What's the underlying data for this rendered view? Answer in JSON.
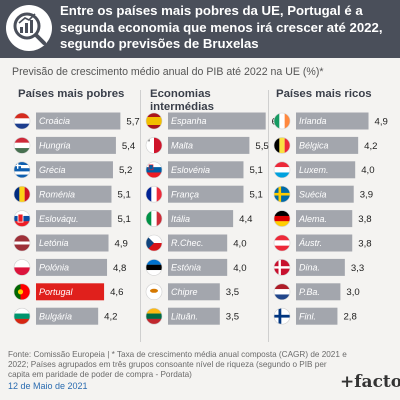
{
  "header": {
    "title": "Entre os países mais pobres da UE, Portugal é a segunda economia que menos irá crescer até 2022, segundo previsões de Bruxelas",
    "logo_icon": "magnifier-chart-icon"
  },
  "subtitle": "Previsão de crescimento médio anual do PIB até 2022 na UE (%)*",
  "chart_data": {
    "type": "bar",
    "orientation": "horizontal",
    "xlim": [
      0,
      7
    ],
    "groups": [
      {
        "name": "Países mais pobres",
        "categories": [
          "Croácia",
          "Hungria",
          "Grécia",
          "Roménia",
          "Eslováqu.",
          "Letónia",
          "Polónia",
          "Portugal",
          "Bulgária"
        ],
        "values": [
          5.7,
          5.4,
          5.2,
          5.1,
          5.1,
          4.9,
          4.8,
          4.6,
          4.2
        ]
      },
      {
        "name": "Economias intermédias",
        "categories": [
          "Espanha",
          "Malta",
          "Eslovénia",
          "França",
          "Itália",
          "R.Chec.",
          "Estónia",
          "Chipre",
          "Lituân."
        ],
        "values": [
          6.6,
          5.5,
          5.1,
          5.1,
          4.4,
          4.0,
          4.0,
          3.5,
          3.5
        ]
      },
      {
        "name": "Países mais ricos",
        "categories": [
          "Irlanda",
          "Bélgica",
          "Luxem.",
          "Suécia",
          "Alema.",
          "Áustr.",
          "Dina.",
          "P.Ba.",
          "Finl."
        ],
        "values": [
          4.9,
          4.2,
          4.0,
          3.9,
          3.8,
          3.8,
          3.3,
          3.0,
          2.8
        ]
      }
    ],
    "value_labels": [
      [
        "5,7",
        "5,4",
        "5,2",
        "5,1",
        "5,1",
        "4,9",
        "4,8",
        "4,6",
        "4,2"
      ],
      [
        "6,6",
        "5,5",
        "5,1",
        "5,1",
        "4,4",
        "4,0",
        "4,0",
        "3,5",
        "3,5"
      ],
      [
        "4,9",
        "4,2",
        "4,0",
        "3,9",
        "3,8",
        "3,8",
        "3,3",
        "3,0",
        "2,8"
      ]
    ],
    "highlight": {
      "group": 0,
      "category": "Portugal",
      "color": "#e0201c"
    },
    "bar_color": "#a3a6ad",
    "flag_icons": [
      [
        "croatia-flag-icon",
        "hungary-flag-icon",
        "greece-flag-icon",
        "romania-flag-icon",
        "slovakia-flag-icon",
        "latvia-flag-icon",
        "poland-flag-icon",
        "portugal-flag-icon",
        "bulgaria-flag-icon"
      ],
      [
        "spain-flag-icon",
        "malta-flag-icon",
        "slovenia-flag-icon",
        "france-flag-icon",
        "italy-flag-icon",
        "czechia-flag-icon",
        "estonia-flag-icon",
        "cyprus-flag-icon",
        "lithuania-flag-icon"
      ],
      [
        "ireland-flag-icon",
        "belgium-flag-icon",
        "luxembourg-flag-icon",
        "sweden-flag-icon",
        "germany-flag-icon",
        "austria-flag-icon",
        "denmark-flag-icon",
        "netherlands-flag-icon",
        "finland-flag-icon"
      ]
    ]
  },
  "source": "Fonte: Comissão Europeia | * Taxa de crescimento média anual composta (CAGR) de 2021 e 2022; Países agrupados em três grupos consoante nível de riqueza (segundo o PIB per capita em paridade de poder de compra - Pordata)",
  "date": "12 de Maio de 2021",
  "brand": "+factos"
}
